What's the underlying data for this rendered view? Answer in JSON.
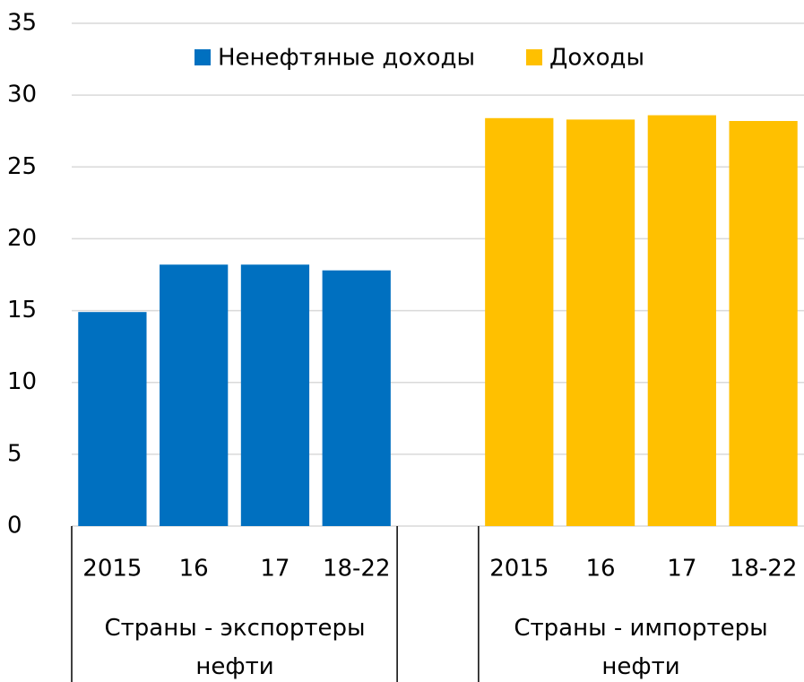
{
  "chart_data": {
    "type": "bar",
    "categories": [
      "2015",
      "16",
      "17",
      "18-22",
      null,
      "2015",
      "16",
      "17",
      "18-22"
    ],
    "groups": [
      "Страны - экспортеры нефти",
      "Страны - импортеры нефти"
    ],
    "series": [
      {
        "name": "Ненефтяные доходы",
        "color": "#0070c0",
        "values": [
          14.9,
          18.2,
          18.2,
          17.8,
          null,
          null,
          null,
          null,
          null
        ]
      },
      {
        "name": "Доходы",
        "color": "#ffc000",
        "values": [
          null,
          null,
          null,
          null,
          null,
          28.4,
          28.3,
          28.6,
          28.2
        ]
      }
    ],
    "ylim": [
      0,
      35
    ],
    "yticks": [
      0,
      5,
      10,
      15,
      20,
      25,
      30,
      35
    ],
    "grid": true,
    "legend": "top"
  }
}
